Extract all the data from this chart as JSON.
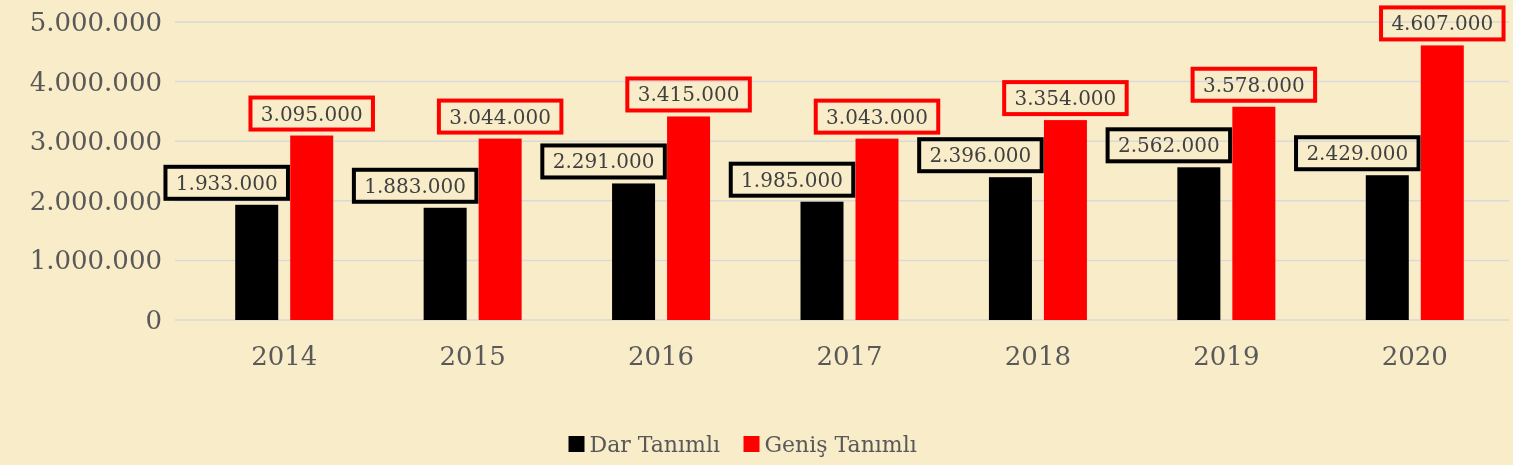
{
  "chart_data": {
    "type": "bar",
    "categories": [
      "2014",
      "2015",
      "2016",
      "2017",
      "2018",
      "2019",
      "2020"
    ],
    "series": [
      {
        "name": "Dar Tanımlı",
        "color": "#000000",
        "values": [
          1933000,
          1883000,
          2291000,
          1985000,
          2396000,
          2562000,
          2429000
        ],
        "value_labels": [
          "1.933.000",
          "1.883.000",
          "2.291.000",
          "1.985.000",
          "2.396.000",
          "2.562.000",
          "2.429.000"
        ]
      },
      {
        "name": "Geniş Tanımlı",
        "color": "#ff0000",
        "values": [
          3095000,
          3044000,
          3415000,
          3043000,
          3354000,
          3578000,
          4607000
        ],
        "value_labels": [
          "3.095.000",
          "3.044.000",
          "3.415.000",
          "3.043.000",
          "3.354.000",
          "3.578.000",
          "4.607.000"
        ]
      }
    ],
    "ylim": [
      0,
      5000000
    ],
    "yticks": [
      0,
      {
        "value": 1000000,
        "label": "1.000.000"
      },
      {
        "value": 2000000,
        "label": "2.000.000"
      },
      {
        "value": 3000000,
        "label": "3.000.000"
      },
      {
        "value": 4000000,
        "label": "4.000.000"
      },
      {
        "value": 5000000,
        "label": "5.000.000"
      }
    ],
    "grid": "y",
    "legend": "bottom"
  }
}
